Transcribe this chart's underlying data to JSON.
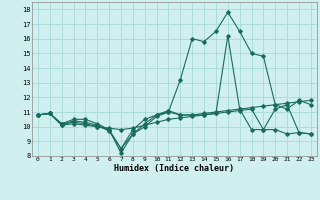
{
  "title": "",
  "xlabel": "Humidex (Indice chaleur)",
  "ylabel": "",
  "background_color": "#cff0ee",
  "grid_color": "#aadddd",
  "line_color": "#1a6b5a",
  "xlim": [
    -0.5,
    23.5
  ],
  "ylim": [
    8,
    18.5
  ],
  "xticks": [
    0,
    1,
    2,
    3,
    4,
    5,
    6,
    7,
    8,
    9,
    10,
    11,
    12,
    13,
    14,
    15,
    16,
    17,
    18,
    19,
    20,
    21,
    22,
    23
  ],
  "yticks": [
    8,
    9,
    10,
    11,
    12,
    13,
    14,
    15,
    16,
    17,
    18
  ],
  "series": [
    [
      10.8,
      10.9,
      10.2,
      10.5,
      10.5,
      10.2,
      9.8,
      8.2,
      9.5,
      10.0,
      10.7,
      11.0,
      13.2,
      16.0,
      15.8,
      16.5,
      17.8,
      16.5,
      15.0,
      14.8,
      11.5,
      11.2,
      11.8,
      11.5
    ],
    [
      10.8,
      10.9,
      10.1,
      10.4,
      10.3,
      10.1,
      9.7,
      8.5,
      9.5,
      10.2,
      10.8,
      11.1,
      10.8,
      10.8,
      10.8,
      10.9,
      16.2,
      11.2,
      9.8,
      9.8,
      11.2,
      11.5,
      9.6,
      9.5
    ],
    [
      10.8,
      10.9,
      10.2,
      10.3,
      10.2,
      10.0,
      9.8,
      8.5,
      9.8,
      10.5,
      10.8,
      11.0,
      10.8,
      10.8,
      10.9,
      11.0,
      11.1,
      11.2,
      11.3,
      11.4,
      11.5,
      11.6,
      11.7,
      11.8
    ],
    [
      10.8,
      10.9,
      10.1,
      10.2,
      10.1,
      10.0,
      9.9,
      9.8,
      9.9,
      10.1,
      10.3,
      10.5,
      10.6,
      10.7,
      10.8,
      10.9,
      11.0,
      11.1,
      11.2,
      9.8,
      9.8,
      9.5,
      9.6,
      9.5
    ]
  ]
}
